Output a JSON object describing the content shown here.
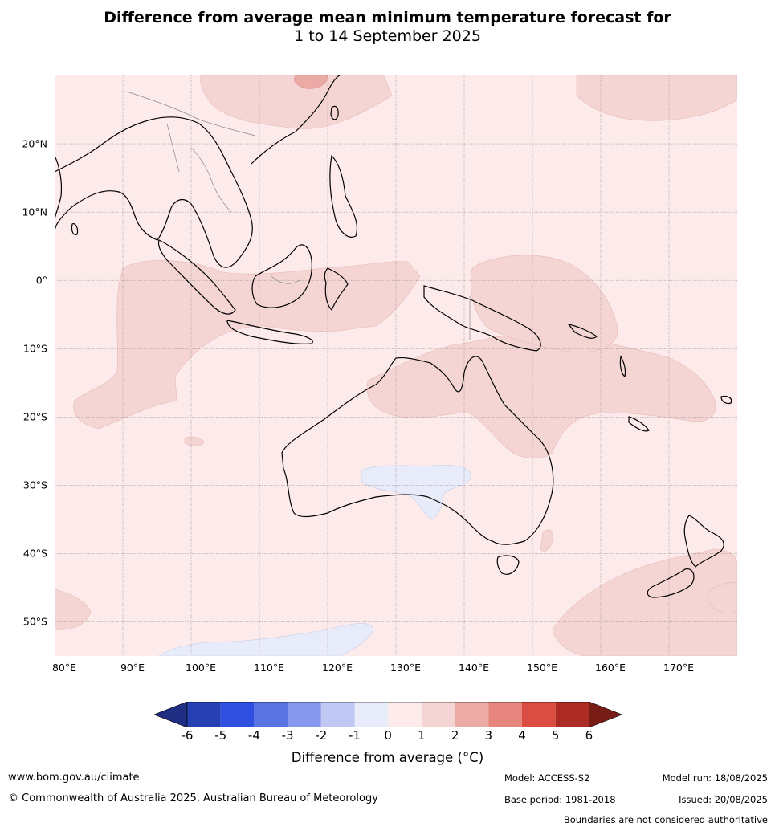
{
  "title": {
    "line1": "Difference from average mean minimum temperature forecast for",
    "line2": "1 to 14 September 2025"
  },
  "map": {
    "region": "Maritime Continent, Australia and southwest Pacific",
    "extent": {
      "lon_min": 80,
      "lon_max": 180,
      "lat_min": -55,
      "lat_max": 30
    },
    "lat_labels": [
      "20°N",
      "10°N",
      "0°",
      "10°S",
      "20°S",
      "30°S",
      "40°S",
      "50°S"
    ],
    "lat_values": [
      20,
      10,
      0,
      -10,
      -20,
      -30,
      -40,
      -50
    ],
    "lon_labels": [
      "80°E",
      "90°E",
      "100°E",
      "110°E",
      "120°E",
      "130°E",
      "140°E",
      "150°E",
      "160°E",
      "170°E"
    ],
    "lon_values": [
      80,
      90,
      100,
      110,
      120,
      130,
      140,
      150,
      160,
      170
    ],
    "background_anomaly_class": "0 to 1",
    "features": [
      {
        "name": "Eastern Indian Ocean / Indonesia warm area",
        "anomaly_class": "1 to 2"
      },
      {
        "name": "Northern Australia and Coral Sea warm area",
        "anomaly_class": "1 to 2"
      },
      {
        "name": "Western Pacific warm area",
        "anomaly_class": "1 to 2"
      },
      {
        "name": "Southern China warm spot",
        "anomaly_class": "2 to 3"
      },
      {
        "name": "Southern Australia cool area",
        "anomaly_class": "-1 to 0"
      },
      {
        "name": "Southern Ocean cool area",
        "anomaly_class": "-1 to 0"
      },
      {
        "name": "Tasman Sea warm area",
        "anomaly_class": "1 to 2"
      }
    ]
  },
  "colorbar": {
    "ticks": [
      "-6",
      "-5",
      "-4",
      "-3",
      "-2",
      "-1",
      "0",
      "1",
      "2",
      "3",
      "4",
      "5",
      "6"
    ],
    "colors": {
      "below_-6": "#1f2d82",
      "-6_-5": "#263fb2",
      "-5_-4": "#2f4fe0",
      "-4_-3": "#5a73e2",
      "-3_-2": "#8598ec",
      "-2_-1": "#c0c8f3",
      "-1_0": "#e8ecfa",
      "0_1": "#fcebea",
      "1_2": "#f4d5d4",
      "2_3": "#ecaaa6",
      "3_4": "#e6857e",
      "4_5": "#db4c42",
      "5_6": "#ac2b22",
      "above_6": "#7a1c16"
    },
    "label": "Difference from average (°C)"
  },
  "footer": {
    "url": "www.bom.gov.au/climate",
    "copyright": "© Commonwealth of Australia 2025, Australian Bureau of Meteorology",
    "model": "Model: ACCESS-S2",
    "base_period": "Base period: 1981-2018",
    "model_run": "Model run: 18/08/2025",
    "issued": "Issued: 20/08/2025",
    "disclaimer": "Boundaries are not considered authoritative"
  }
}
